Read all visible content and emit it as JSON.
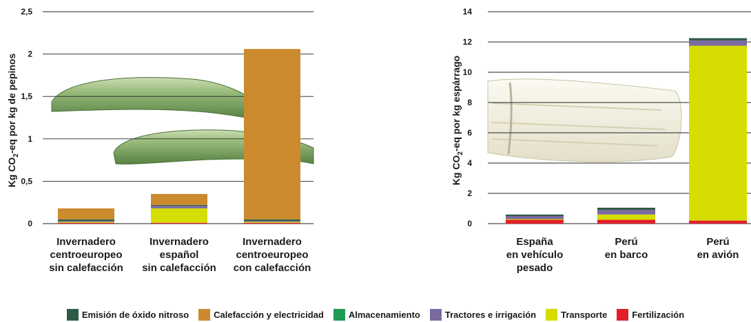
{
  "colors": {
    "Emisión de óxido nitroso": "#2e5a46",
    "Calefacción y electricidad": "#cc8a2e",
    "Almacenamiento": "#1f9a55",
    "Tractores e irrigación": "#7b6aa0",
    "Transporte": "#d6dd00",
    "Fertilización": "#e2202a"
  },
  "legend": [
    "Emisión de óxido nitroso",
    "Calefacción y electricidad",
    "Almacenamiento",
    "Tractores e irrigación",
    "Transporte",
    "Fertilización"
  ],
  "chart_data": [
    {
      "type": "bar",
      "stacked": true,
      "ylabel_parts": [
        "Kg CO",
        "2",
        "-eq por kg de pepinos"
      ],
      "ylim": [
        0,
        2.5
      ],
      "yticks": [
        "0",
        "0,5",
        "1",
        "1,5",
        "2",
        "2,5"
      ],
      "grid": true,
      "categories": [
        [
          "Invernadero",
          "centroeuropeo",
          "sin calefacción"
        ],
        [
          "Invernadero",
          "español",
          "sin calefacción"
        ],
        [
          "Invernadero",
          "centroeuropeo",
          "con calefacción"
        ]
      ],
      "series": [
        {
          "name": "Fertilización",
          "values": [
            0.01,
            0.01,
            0.01
          ]
        },
        {
          "name": "Transporte",
          "values": [
            0.01,
            0.17,
            0.01
          ]
        },
        {
          "name": "Tractores e irrigación",
          "values": [
            0.01,
            0.03,
            0.01
          ]
        },
        {
          "name": "Almacenamiento",
          "values": [
            0,
            0,
            0
          ]
        },
        {
          "name": "Emisión de óxido nitroso",
          "values": [
            0.02,
            0.01,
            0.02
          ]
        },
        {
          "name": "Calefacción y electricidad",
          "values": [
            0.13,
            0.13,
            2.01
          ]
        }
      ]
    },
    {
      "type": "bar",
      "stacked": true,
      "ylabel_parts": [
        "Kg CO",
        "2",
        "-eq por kg espárrago"
      ],
      "ylim": [
        0,
        14
      ],
      "yticks": [
        "0",
        "2",
        "4",
        "6",
        "8",
        "10",
        "12",
        "14"
      ],
      "grid": true,
      "categories": [
        [
          "España",
          "en vehículo",
          "pesado"
        ],
        [
          "Perú",
          "en barco"
        ],
        [
          "Perú",
          "en avión"
        ]
      ],
      "series": [
        {
          "name": "Fertilización",
          "values": [
            0.25,
            0.25,
            0.2
          ]
        },
        {
          "name": "Transporte",
          "values": [
            0.05,
            0.35,
            11.55
          ]
        },
        {
          "name": "Tractores e irrigación",
          "values": [
            0.2,
            0.3,
            0.35
          ]
        },
        {
          "name": "Almacenamiento",
          "values": [
            0,
            0,
            0
          ]
        },
        {
          "name": "Emisión de óxido nitroso",
          "values": [
            0.1,
            0.15,
            0.15
          ]
        },
        {
          "name": "Calefacción y electricidad",
          "values": [
            0,
            0,
            0
          ]
        }
      ]
    }
  ]
}
